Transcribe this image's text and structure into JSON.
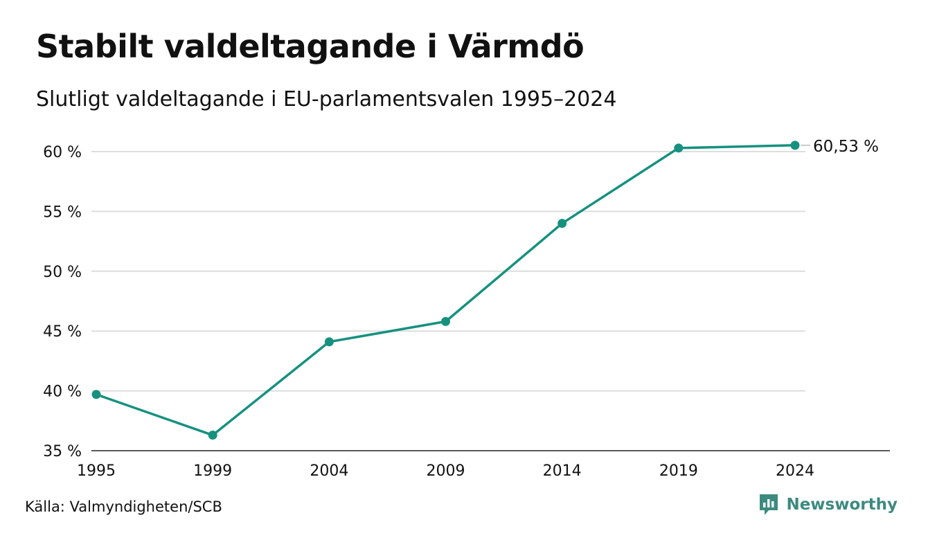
{
  "header": {
    "title": "Stabilt valdeltagande i Värmdö",
    "subtitle": "Slutligt valdeltagande i EU-parlamentsvalen 1995–2024"
  },
  "footer": {
    "source": "Källa: Valmyndigheten/SCB",
    "brand": "Newsworthy"
  },
  "colors": {
    "line": "#16917f",
    "grid": "#dddddd",
    "brand": "#3d8a7f"
  },
  "chart_data": {
    "type": "line",
    "title": "Stabilt valdeltagande i Värmdö",
    "subtitle": "Slutligt valdeltagande i EU-parlamentsvalen 1995–2024",
    "xlabel": "",
    "ylabel": "",
    "x": [
      "1995",
      "1999",
      "2004",
      "2009",
      "2014",
      "2019",
      "2024"
    ],
    "series": [
      {
        "values": [
          39.7,
          36.3,
          44.1,
          45.8,
          54.0,
          60.3,
          60.53
        ]
      }
    ],
    "ylim": [
      35,
      60
    ],
    "yticks": [
      35,
      40,
      45,
      50,
      55,
      60
    ],
    "ytick_labels": [
      "35 %",
      "40 %",
      "45 %",
      "50 %",
      "55 %",
      "60 %"
    ],
    "end_label": "60,53 %",
    "grid": true,
    "legend": "none"
  }
}
